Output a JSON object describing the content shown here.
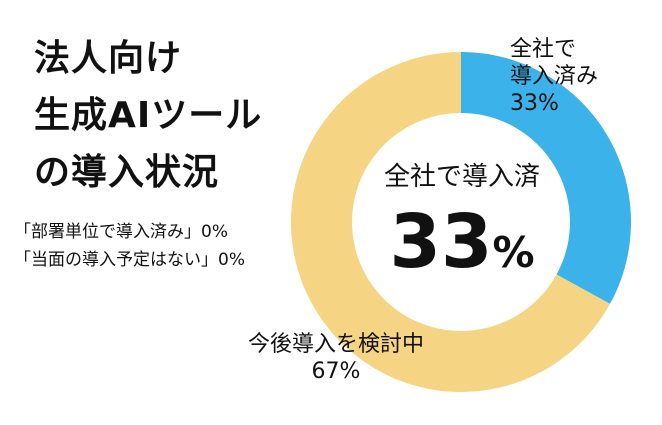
{
  "chart_data": {
    "type": "pie",
    "title_lines": [
      "法人向け",
      "生成AIツール",
      "の導入状況"
    ],
    "notes": [
      "「部署単位で導入済み」0%",
      "「当面の導入予定はない」0%"
    ],
    "slices": [
      {
        "label_lines": [
          "全社で",
          "導入済み"
        ],
        "value": 33,
        "value_label": "33%",
        "color": "#3BB3EA"
      },
      {
        "label_lines": [
          "今後導入を検討中"
        ],
        "value": 67,
        "value_label": "67%",
        "color": "#F5D584"
      }
    ],
    "center": {
      "label": "全社で導入済",
      "value": "33",
      "unit": "%"
    }
  }
}
